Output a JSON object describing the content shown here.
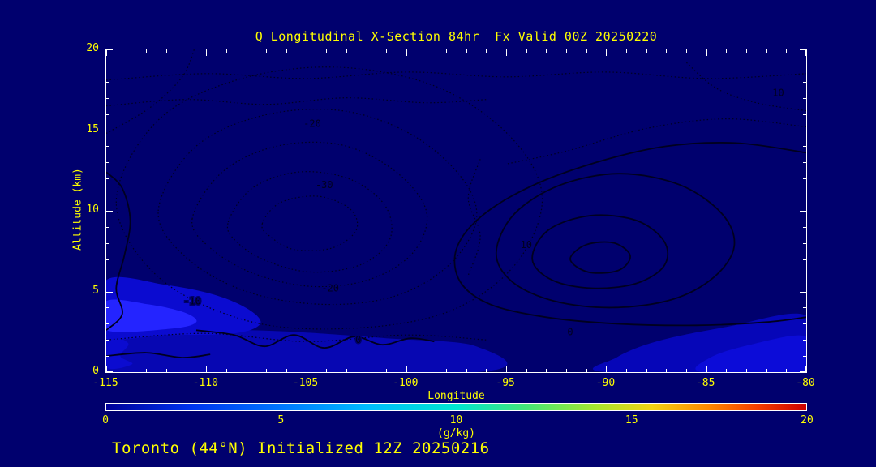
{
  "footer": {
    "text": "Toronto (44°N) Initialized 12Z 20250216"
  },
  "colors": {
    "background": "#00006e",
    "frame": "#ffffff",
    "text": "#ffff00",
    "contour": "#000020"
  },
  "chart_data": {
    "type": "heatmap",
    "subtype": "contour_cross_section",
    "title": "Q Longitudinal X-Section 84hr  Fx Valid 00Z 20250220",
    "xlabel": "Longitude",
    "ylabel": "Altitude (km)",
    "xlim": [
      -115,
      -80
    ],
    "ylim": [
      0,
      20
    ],
    "x_ticks": [
      -115,
      -110,
      -105,
      -100,
      -95,
      -90,
      -85,
      -80
    ],
    "y_ticks": [
      0,
      5,
      10,
      15,
      20
    ],
    "x_minor_step": 1,
    "y_minor_step": 1,
    "grid": false,
    "legend": "colorbar-bottom",
    "colorbar": {
      "label": "(g/kg)",
      "min": 0,
      "max": 20,
      "ticks": [
        0,
        5,
        10,
        15,
        20
      ],
      "stops": [
        {
          "pos": 0,
          "color": "#000099"
        },
        {
          "pos": 12,
          "color": "#0033ee"
        },
        {
          "pos": 25,
          "color": "#0077ff"
        },
        {
          "pos": 37,
          "color": "#00bbff"
        },
        {
          "pos": 50,
          "color": "#00e8d0"
        },
        {
          "pos": 60,
          "color": "#44e878"
        },
        {
          "pos": 70,
          "color": "#a8e62e"
        },
        {
          "pos": 78,
          "color": "#f2d213"
        },
        {
          "pos": 86,
          "color": "#ff8800"
        },
        {
          "pos": 93,
          "color": "#f53d00"
        },
        {
          "pos": 100,
          "color": "#cc0000"
        }
      ]
    },
    "contour_labels": [
      {
        "text": "-20",
        "lon": -104.7,
        "alt": 15.4
      },
      {
        "text": "-30",
        "lon": -104.1,
        "alt": 11.6
      },
      {
        "text": "-20",
        "lon": -103.8,
        "alt": 5.2
      },
      {
        "text": "-10",
        "lon": -110.7,
        "alt": 4.4
      },
      {
        "text": "10",
        "lon": -94.0,
        "alt": 7.9
      },
      {
        "text": "10",
        "lon": -81.4,
        "alt": 17.3
      },
      {
        "text": "0",
        "lon": -102.4,
        "alt": 2.0
      },
      {
        "text": "0",
        "lon": -91.8,
        "alt": 2.5
      }
    ],
    "contours_solid": [
      {
        "closed": false,
        "points": [
          [
            -80,
            13.6
          ],
          [
            -83.5,
            14.2
          ],
          [
            -87,
            14.0
          ],
          [
            -90.5,
            13.0
          ],
          [
            -93.8,
            11.5
          ],
          [
            -96.3,
            9.6
          ],
          [
            -97.5,
            7.6
          ],
          [
            -97.3,
            5.6
          ],
          [
            -95.8,
            4.2
          ],
          [
            -93,
            3.4
          ],
          [
            -89.5,
            3.0
          ],
          [
            -85.5,
            2.9
          ],
          [
            -82,
            3.1
          ],
          [
            -80,
            3.4
          ]
        ]
      },
      {
        "closed": true,
        "points": [
          [
            -95.5,
            7.4
          ],
          [
            -94.6,
            9.8
          ],
          [
            -92.3,
            11.6
          ],
          [
            -89.3,
            12.3
          ],
          [
            -86.3,
            11.6
          ],
          [
            -84.2,
            9.8
          ],
          [
            -83.6,
            7.8
          ],
          [
            -84.6,
            5.9
          ],
          [
            -86.7,
            4.5
          ],
          [
            -89.7,
            4.0
          ],
          [
            -92.6,
            4.4
          ],
          [
            -94.7,
            5.6
          ]
        ]
      },
      {
        "closed": true,
        "points": [
          [
            -93.7,
            7.0
          ],
          [
            -92.9,
            8.8
          ],
          [
            -90.8,
            9.7
          ],
          [
            -88.5,
            9.4
          ],
          [
            -87.1,
            8.1
          ],
          [
            -87.1,
            6.6
          ],
          [
            -88.5,
            5.5
          ],
          [
            -90.7,
            5.2
          ],
          [
            -92.7,
            5.7
          ]
        ]
      },
      {
        "closed": true,
        "points": [
          [
            -91.8,
            7.0
          ],
          [
            -91.0,
            7.9
          ],
          [
            -89.6,
            8.0
          ],
          [
            -88.8,
            7.2
          ],
          [
            -89.4,
            6.3
          ],
          [
            -90.9,
            6.2
          ]
        ]
      },
      {
        "closed": false,
        "points": [
          [
            -115,
            12.4
          ],
          [
            -114.2,
            11.4
          ],
          [
            -113.8,
            9.4
          ],
          [
            -114.1,
            7.2
          ],
          [
            -114.5,
            5.2
          ],
          [
            -114.2,
            3.6
          ],
          [
            -115,
            2.6
          ]
        ]
      },
      {
        "closed": false,
        "points": [
          [
            -110.5,
            2.6
          ],
          [
            -108.6,
            2.3
          ],
          [
            -107.1,
            1.6
          ],
          [
            -105.6,
            2.3
          ],
          [
            -104.1,
            1.5
          ],
          [
            -102.6,
            2.2
          ],
          [
            -101.2,
            1.7
          ],
          [
            -99.8,
            2.1
          ],
          [
            -98.6,
            1.9
          ]
        ]
      },
      {
        "closed": false,
        "points": [
          [
            -115,
            1.0
          ],
          [
            -113,
            1.2
          ],
          [
            -111.2,
            0.9
          ],
          [
            -109.8,
            1.1
          ]
        ]
      }
    ],
    "contours_dashed": [
      {
        "closed": true,
        "points": [
          [
            -114.5,
            10.5
          ],
          [
            -112.5,
            15.5
          ],
          [
            -108.5,
            18.1
          ],
          [
            -103.5,
            18.9
          ],
          [
            -98.5,
            17.7
          ],
          [
            -94.8,
            14.6
          ],
          [
            -93.2,
            10.8
          ],
          [
            -94.6,
            6.6
          ],
          [
            -98,
            3.7
          ],
          [
            -103,
            2.7
          ],
          [
            -108,
            3.2
          ],
          [
            -112.4,
            5.9
          ]
        ]
      },
      {
        "closed": true,
        "points": [
          [
            -112.4,
            10
          ],
          [
            -110.6,
            13.9
          ],
          [
            -107.2,
            15.9
          ],
          [
            -103.2,
            16.2
          ],
          [
            -99.7,
            14.7
          ],
          [
            -97.2,
            12
          ],
          [
            -96.5,
            9.4
          ],
          [
            -97.9,
            6.6
          ],
          [
            -100.6,
            4.7
          ],
          [
            -104.2,
            4.2
          ],
          [
            -108,
            5
          ],
          [
            -111,
            7.1
          ]
        ]
      },
      {
        "closed": true,
        "points": [
          [
            -110.7,
            9.5
          ],
          [
            -109.2,
            12.4
          ],
          [
            -106.5,
            14
          ],
          [
            -103.3,
            14.1
          ],
          [
            -100.6,
            12.5
          ],
          [
            -99,
            10
          ],
          [
            -99.6,
            7.5
          ],
          [
            -101.7,
            5.8
          ],
          [
            -104.6,
            5.3
          ],
          [
            -107.6,
            6.1
          ],
          [
            -109.8,
            7.7
          ]
        ]
      },
      {
        "closed": true,
        "points": [
          [
            -108.9,
            9.3
          ],
          [
            -107.7,
            11.4
          ],
          [
            -105.4,
            12.4
          ],
          [
            -102.9,
            12
          ],
          [
            -101.1,
            10.4
          ],
          [
            -100.8,
            8.3
          ],
          [
            -102.2,
            6.7
          ],
          [
            -104.7,
            6.2
          ],
          [
            -107,
            6.9
          ],
          [
            -108.5,
            8.1
          ]
        ]
      },
      {
        "closed": true,
        "points": [
          [
            -107.2,
            9.2
          ],
          [
            -106.3,
            10.5
          ],
          [
            -104.4,
            10.9
          ],
          [
            -102.8,
            10.1
          ],
          [
            -102.5,
            8.8
          ],
          [
            -103.7,
            7.7
          ],
          [
            -105.6,
            7.6
          ],
          [
            -106.8,
            8.4
          ]
        ]
      },
      {
        "closed": false,
        "points": [
          [
            -115,
            18.1
          ],
          [
            -110,
            18.5
          ],
          [
            -105,
            18.2
          ],
          [
            -100,
            18.6
          ],
          [
            -95,
            18.3
          ],
          [
            -90,
            18.6
          ],
          [
            -85,
            18.2
          ],
          [
            -80,
            18.5
          ]
        ]
      },
      {
        "closed": false,
        "points": [
          [
            -115,
            16.5
          ],
          [
            -111,
            16.9
          ],
          [
            -107,
            16.6
          ],
          [
            -103,
            17
          ],
          [
            -99,
            16.7
          ],
          [
            -96,
            16.9
          ]
        ]
      },
      {
        "closed": false,
        "points": [
          [
            -80,
            16.2
          ],
          [
            -82.5,
            16.7
          ],
          [
            -84.5,
            17.6
          ],
          [
            -86,
            19.2
          ]
        ]
      },
      {
        "closed": false,
        "points": [
          [
            -96.3,
            13.2
          ],
          [
            -96.9,
            10.8
          ],
          [
            -96.3,
            8.4
          ],
          [
            -96.9,
            6
          ]
        ]
      },
      {
        "closed": false,
        "points": [
          [
            -115,
            2.0
          ],
          [
            -110,
            2.4
          ],
          [
            -105,
            1.9
          ],
          [
            -100,
            2.3
          ],
          [
            -96,
            2.0
          ]
        ]
      },
      {
        "closed": false,
        "points": [
          [
            -80,
            15.2
          ],
          [
            -84,
            15.7
          ],
          [
            -88,
            15.1
          ],
          [
            -92,
            13.7
          ],
          [
            -95,
            12.9
          ]
        ]
      },
      {
        "closed": false,
        "points": [
          [
            -115,
            14.8
          ],
          [
            -112.8,
            16.4
          ],
          [
            -111.2,
            18.3
          ],
          [
            -110.6,
            20
          ]
        ]
      }
    ],
    "moisture_fills": [
      {
        "color": "#0707b2",
        "points": [
          [
            -115,
            2.3
          ],
          [
            -108,
            2.6
          ],
          [
            -101,
            2.1
          ],
          [
            -96.5,
            1.6
          ],
          [
            -96.5,
            0
          ],
          [
            -115,
            0
          ]
        ]
      },
      {
        "color": "#0606b8",
        "points": [
          [
            -80,
            3.5
          ],
          [
            -84,
            2.8
          ],
          [
            -87.5,
            1.9
          ],
          [
            -89.5,
            0.9
          ],
          [
            -90,
            0
          ],
          [
            -80,
            0
          ]
        ]
      },
      {
        "color": "#0c0cd8",
        "points": [
          [
            -80,
            2.2
          ],
          [
            -82.8,
            1.7
          ],
          [
            -84.8,
            0.9
          ],
          [
            -85.2,
            0
          ],
          [
            -80,
            0
          ]
        ]
      },
      {
        "color": "#0b0bd0",
        "points": [
          [
            -115,
            5.7
          ],
          [
            -112,
            5.4
          ],
          [
            -109.6,
            4.8
          ],
          [
            -107.9,
            3.9
          ],
          [
            -107.3,
            3.0
          ],
          [
            -108.6,
            2.4
          ],
          [
            -112,
            2.3
          ],
          [
            -115,
            2.3
          ]
        ]
      },
      {
        "color": "#2424ff",
        "points": [
          [
            -115,
            4.4
          ],
          [
            -112.9,
            4.2
          ],
          [
            -111.1,
            3.7
          ],
          [
            -110.5,
            3.1
          ],
          [
            -111.7,
            2.7
          ],
          [
            -115,
            2.6
          ]
        ]
      },
      {
        "color": "#0b0bd0",
        "points": [
          [
            -115,
            2.2
          ],
          [
            -113.9,
            1.8
          ],
          [
            -114.3,
            1.0
          ],
          [
            -113.7,
            0.5
          ],
          [
            -115,
            0.3
          ]
        ]
      }
    ]
  }
}
